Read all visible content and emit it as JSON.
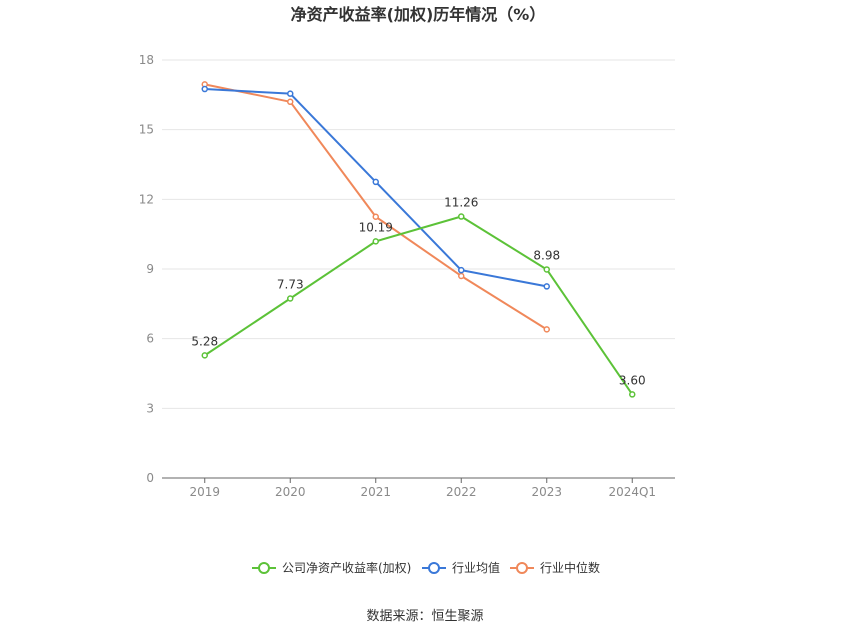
{
  "chart_data": {
    "type": "line",
    "title": "净资产收益率(加权)历年情况（%）",
    "categories": [
      "2019",
      "2020",
      "2021",
      "2022",
      "2023",
      "2024Q1"
    ],
    "ylim": [
      0,
      18
    ],
    "yticks": [
      0,
      3,
      6,
      9,
      12,
      15,
      18
    ],
    "grid": true,
    "legend_position": "bottom",
    "series": [
      {
        "name": "公司净资产收益率(加权)",
        "color": "#5cc238",
        "values": [
          5.28,
          7.73,
          10.19,
          11.26,
          8.98,
          3.6
        ],
        "labels": [
          "5.28",
          "7.73",
          "10.19",
          "11.26",
          "8.98",
          "3.60"
        ]
      },
      {
        "name": "行业均值",
        "color": "#3a78d8",
        "values": [
          16.75,
          16.55,
          12.75,
          8.95,
          8.25,
          null
        ]
      },
      {
        "name": "行业中位数",
        "color": "#f0885a",
        "values": [
          16.95,
          16.2,
          11.25,
          8.7,
          6.4,
          null
        ]
      }
    ]
  },
  "source": "数据来源：恒生聚源"
}
